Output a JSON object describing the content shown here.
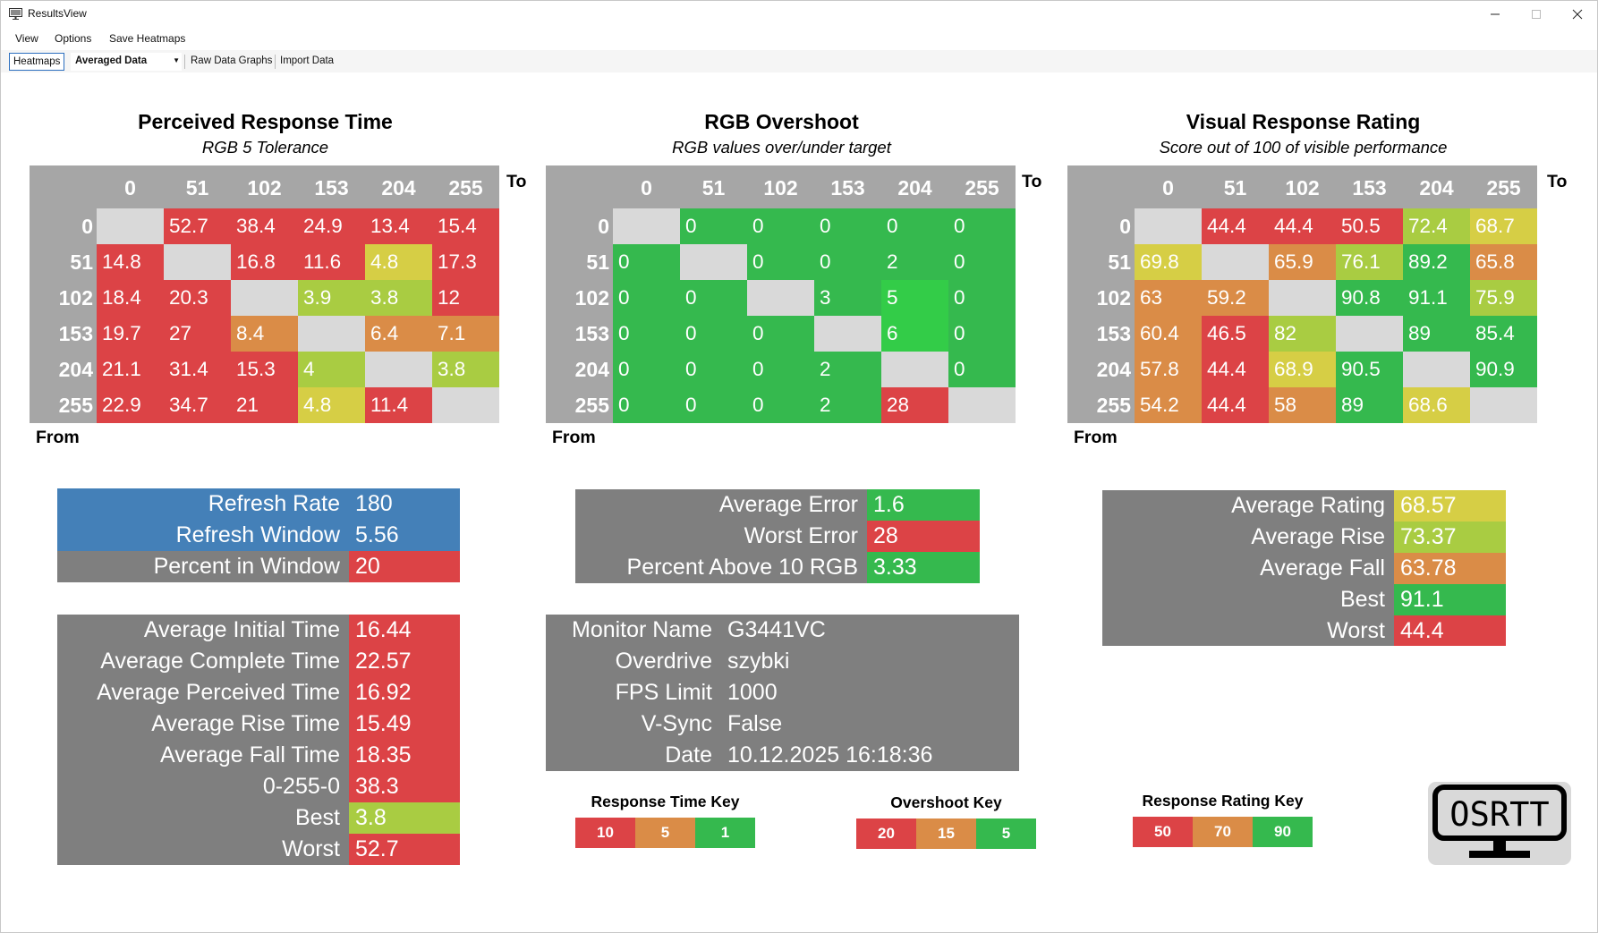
{
  "window": {
    "title": "ResultsView",
    "icon": "monitor-app-icon"
  },
  "menu": [
    "View",
    "Options",
    "Save Heatmaps"
  ],
  "toolbar": {
    "tab": "Heatmaps",
    "dropdown": "Averaged Data",
    "raw": "Raw Data Graphs",
    "import": "Import Data"
  },
  "colors": {
    "red": "#dc4346",
    "orange": "#da8c47",
    "yellow": "#d6ce45",
    "lime": "#a9cc42",
    "green": "#35b94e",
    "brightgreen": "#33cc48",
    "gray": "#7f7f7f",
    "blue": "#4480b8",
    "headerGray": "#a6a6a6",
    "emptyCell": "#d9d9d9"
  },
  "heatmaps": [
    {
      "title": "Perceived Response Time",
      "subtitle": "RGB 5 Tolerance",
      "to": "To",
      "from": "From",
      "cols": [
        "0",
        "51",
        "102",
        "153",
        "204",
        "255"
      ],
      "rows": [
        "0",
        "51",
        "102",
        "153",
        "204",
        "255"
      ],
      "values": [
        [
          "",
          "52.7",
          "38.4",
          "24.9",
          "13.4",
          "15.4"
        ],
        [
          "14.8",
          "",
          "16.8",
          "11.6",
          "4.8",
          "17.3"
        ],
        [
          "18.4",
          "20.3",
          "",
          "3.9",
          "3.8",
          "12"
        ],
        [
          "19.7",
          "27",
          "8.4",
          "",
          "6.4",
          "7.1"
        ],
        [
          "21.1",
          "31.4",
          "15.3",
          "4",
          "",
          "3.8"
        ],
        [
          "22.9",
          "34.7",
          "21",
          "4.8",
          "11.4",
          ""
        ]
      ],
      "cellColors": [
        [
          "empty",
          "red",
          "red",
          "red",
          "red",
          "red"
        ],
        [
          "red",
          "empty",
          "red",
          "red",
          "yellow",
          "red"
        ],
        [
          "red",
          "red",
          "empty",
          "lime",
          "lime",
          "red"
        ],
        [
          "red",
          "red",
          "orange",
          "empty",
          "orange",
          "orange"
        ],
        [
          "red",
          "red",
          "red",
          "lime",
          "empty",
          "lime"
        ],
        [
          "red",
          "red",
          "red",
          "yellow",
          "red",
          "empty"
        ]
      ]
    },
    {
      "title": "RGB Overshoot",
      "subtitle": "RGB values over/under target",
      "to": "To",
      "from": "From",
      "cols": [
        "0",
        "51",
        "102",
        "153",
        "204",
        "255"
      ],
      "rows": [
        "0",
        "51",
        "102",
        "153",
        "204",
        "255"
      ],
      "values": [
        [
          "",
          "0",
          "0",
          "0",
          "0",
          "0"
        ],
        [
          "0",
          "",
          "0",
          "0",
          "2",
          "0"
        ],
        [
          "0",
          "0",
          "",
          "3",
          "5",
          "0"
        ],
        [
          "0",
          "0",
          "0",
          "",
          "6",
          "0"
        ],
        [
          "0",
          "0",
          "0",
          "2",
          "",
          "0"
        ],
        [
          "0",
          "0",
          "0",
          "2",
          "28",
          ""
        ]
      ],
      "cellColors": [
        [
          "empty",
          "green",
          "green",
          "green",
          "green",
          "green"
        ],
        [
          "green",
          "empty",
          "green",
          "green",
          "green",
          "green"
        ],
        [
          "green",
          "green",
          "empty",
          "green",
          "brightgreen",
          "green"
        ],
        [
          "green",
          "green",
          "green",
          "empty",
          "brightgreen",
          "green"
        ],
        [
          "green",
          "green",
          "green",
          "green",
          "empty",
          "green"
        ],
        [
          "green",
          "green",
          "green",
          "green",
          "red",
          "empty"
        ]
      ]
    },
    {
      "title": "Visual Response Rating",
      "subtitle": "Score out of 100 of visible performance",
      "to": "To",
      "from": "From",
      "cols": [
        "0",
        "51",
        "102",
        "153",
        "204",
        "255"
      ],
      "rows": [
        "0",
        "51",
        "102",
        "153",
        "204",
        "255"
      ],
      "values": [
        [
          "",
          "44.4",
          "44.4",
          "50.5",
          "72.4",
          "68.7"
        ],
        [
          "69.8",
          "",
          "65.9",
          "76.1",
          "89.2",
          "65.8"
        ],
        [
          "63",
          "59.2",
          "",
          "90.8",
          "91.1",
          "75.9"
        ],
        [
          "60.4",
          "46.5",
          "82",
          "",
          "89",
          "85.4"
        ],
        [
          "57.8",
          "44.4",
          "68.9",
          "90.5",
          "",
          "90.9"
        ],
        [
          "54.2",
          "44.4",
          "58",
          "89",
          "68.6",
          ""
        ]
      ],
      "cellColors": [
        [
          "empty",
          "red",
          "red",
          "red",
          "lime",
          "yellow"
        ],
        [
          "yellow",
          "empty",
          "orange",
          "lime",
          "green",
          "orange"
        ],
        [
          "orange",
          "orange",
          "empty",
          "green",
          "green",
          "lime"
        ],
        [
          "orange",
          "red",
          "lime",
          "empty",
          "green",
          "green"
        ],
        [
          "orange",
          "red",
          "yellow",
          "green",
          "empty",
          "green"
        ],
        [
          "orange",
          "red",
          "orange",
          "green",
          "yellow",
          "empty"
        ]
      ]
    }
  ],
  "stats": {
    "refresh": [
      {
        "label": "Refresh Rate",
        "value": "180",
        "bg": "blue",
        "vbg": "blue"
      },
      {
        "label": "Refresh Window",
        "value": "5.56",
        "bg": "blue",
        "vbg": "blue"
      },
      {
        "label": "Percent in Window",
        "value": "20",
        "bg": "gray",
        "vbg": "red"
      }
    ],
    "times": [
      {
        "label": "Average Initial Time",
        "value": "16.44",
        "vbg": "red"
      },
      {
        "label": "Average Complete Time",
        "value": "22.57",
        "vbg": "red"
      },
      {
        "label": "Average Perceived Time",
        "value": "16.92",
        "vbg": "red"
      },
      {
        "label": "Average Rise Time",
        "value": "15.49",
        "vbg": "red"
      },
      {
        "label": "Average Fall Time",
        "value": "18.35",
        "vbg": "red"
      },
      {
        "label": "0-255-0",
        "value": "38.3",
        "vbg": "red"
      },
      {
        "label": "Best",
        "value": "3.8",
        "vbg": "lime"
      },
      {
        "label": "Worst",
        "value": "52.7",
        "vbg": "red"
      }
    ],
    "overshoot": [
      {
        "label": "Average Error",
        "value": "1.6",
        "vbg": "green"
      },
      {
        "label": "Worst Error",
        "value": "28",
        "vbg": "red"
      },
      {
        "label": "Percent Above 10 RGB",
        "value": "3.33",
        "vbg": "green"
      }
    ],
    "monitor": [
      {
        "label": "Monitor Name",
        "value": "G3441VC"
      },
      {
        "label": "Overdrive",
        "value": "szybki"
      },
      {
        "label": "FPS Limit",
        "value": "1000"
      },
      {
        "label": "V-Sync",
        "value": "False"
      },
      {
        "label": "Date",
        "value": "10.12.2025 16:18:36"
      }
    ],
    "rating": [
      {
        "label": "Average Rating",
        "value": "68.57",
        "vbg": "yellow"
      },
      {
        "label": "Average Rise",
        "value": "73.37",
        "vbg": "lime"
      },
      {
        "label": "Average Fall",
        "value": "63.78",
        "vbg": "orange"
      },
      {
        "label": "Best",
        "value": "91.1",
        "vbg": "green"
      },
      {
        "label": "Worst",
        "value": "44.4",
        "vbg": "red"
      }
    ]
  },
  "keys": [
    {
      "title": "Response Time Key",
      "values": [
        "10",
        "5",
        "1"
      ],
      "colors": [
        "red",
        "orange",
        "green"
      ]
    },
    {
      "title": "Overshoot Key",
      "values": [
        "20",
        "15",
        "5"
      ],
      "colors": [
        "red",
        "orange",
        "green"
      ]
    },
    {
      "title": "Response Rating Key",
      "values": [
        "50",
        "70",
        "90"
      ],
      "colors": [
        "red",
        "orange",
        "green"
      ]
    }
  ],
  "logo": {
    "text": "OSRTT"
  }
}
